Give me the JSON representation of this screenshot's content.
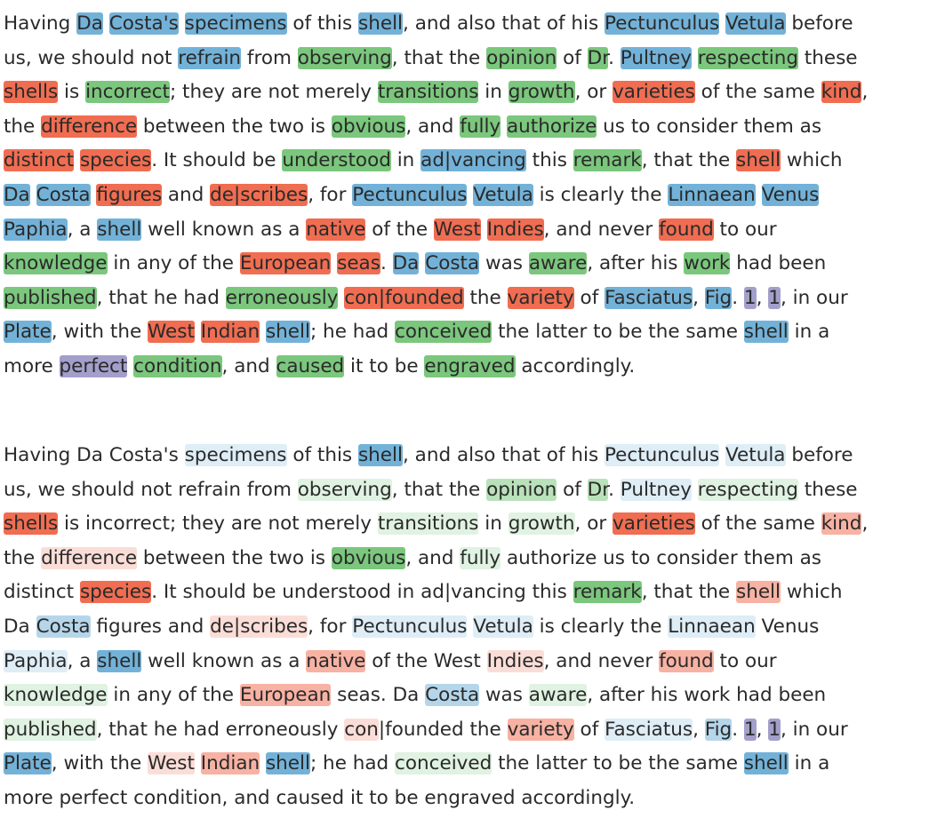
{
  "palette": {
    "blue": [
      107,
      174,
      214
    ],
    "green": [
      116,
      196,
      118
    ],
    "red": [
      239,
      101,
      72
    ],
    "purple": [
      158,
      154,
      200
    ]
  },
  "panels": [
    {
      "id": "top",
      "lines": [
        [
          [
            "Having ",
            ""
          ],
          [
            "Da",
            "b3"
          ],
          [
            " ",
            ""
          ],
          [
            "Costa's",
            "b3"
          ],
          [
            " ",
            ""
          ],
          [
            "specimens",
            "b3"
          ],
          [
            " of this ",
            ""
          ],
          [
            "shell",
            "b3"
          ],
          [
            ", and also that of his ",
            ""
          ],
          [
            "Pectunculus",
            "b3"
          ],
          [
            " ",
            ""
          ],
          [
            "Vetula",
            "b3"
          ],
          [
            " before",
            ""
          ]
        ],
        [
          [
            "us, we should not ",
            ""
          ],
          [
            "refrain",
            "b3"
          ],
          [
            " from ",
            ""
          ],
          [
            "observing",
            "g3"
          ],
          [
            ", that the ",
            ""
          ],
          [
            "opinion",
            "g3"
          ],
          [
            " of ",
            ""
          ],
          [
            "Dr",
            "g3"
          ],
          [
            ". ",
            ""
          ],
          [
            "Pultney",
            "b3"
          ],
          [
            " ",
            ""
          ],
          [
            "respecting",
            "g3"
          ],
          [
            " these",
            ""
          ]
        ],
        [
          [
            "shells",
            "r3"
          ],
          [
            " is ",
            ""
          ],
          [
            "incorrect",
            "g3"
          ],
          [
            "; they are not merely ",
            ""
          ],
          [
            "transitions",
            "g3"
          ],
          [
            " in ",
            ""
          ],
          [
            "growth",
            "g3"
          ],
          [
            ", or ",
            ""
          ],
          [
            "varieties",
            "r3"
          ],
          [
            " of the same ",
            ""
          ],
          [
            "kind",
            "r3"
          ],
          [
            ",",
            ""
          ]
        ],
        [
          [
            "the ",
            ""
          ],
          [
            "difference",
            "r3"
          ],
          [
            " between the two is ",
            ""
          ],
          [
            "obvious",
            "g3"
          ],
          [
            ", and ",
            ""
          ],
          [
            "fully",
            "g3"
          ],
          [
            " ",
            ""
          ],
          [
            "authorize",
            "g3"
          ],
          [
            " us to consider them as",
            ""
          ]
        ],
        [
          [
            "distinct",
            "r3"
          ],
          [
            " ",
            ""
          ],
          [
            "species",
            "r3"
          ],
          [
            ". It should be ",
            ""
          ],
          [
            "understood",
            "g3"
          ],
          [
            " in ",
            ""
          ],
          [
            "ad|vancing",
            "b3"
          ],
          [
            " this ",
            ""
          ],
          [
            "remark",
            "g3"
          ],
          [
            ", that the ",
            ""
          ],
          [
            "shell",
            "r3"
          ],
          [
            " which",
            ""
          ]
        ],
        [
          [
            "Da",
            "b3"
          ],
          [
            " ",
            ""
          ],
          [
            "Costa",
            "b3"
          ],
          [
            " ",
            ""
          ],
          [
            "figures",
            "r3"
          ],
          [
            " and ",
            ""
          ],
          [
            "de|scribes",
            "r3"
          ],
          [
            ", for ",
            ""
          ],
          [
            "Pectunculus",
            "b3"
          ],
          [
            " ",
            ""
          ],
          [
            "Vetula",
            "b3"
          ],
          [
            " is clearly the ",
            ""
          ],
          [
            "Linnaean",
            "b3"
          ],
          [
            " ",
            ""
          ],
          [
            "Venus",
            "b3"
          ]
        ],
        [
          [
            "Paphia",
            "b3"
          ],
          [
            ", a ",
            ""
          ],
          [
            "shell",
            "b3"
          ],
          [
            " well known as a ",
            ""
          ],
          [
            "native",
            "r3"
          ],
          [
            " of the ",
            ""
          ],
          [
            "West",
            "r3"
          ],
          [
            " ",
            ""
          ],
          [
            "Indies",
            "r3"
          ],
          [
            ", and never ",
            ""
          ],
          [
            "found",
            "r3"
          ],
          [
            " to our",
            ""
          ]
        ],
        [
          [
            "knowledge",
            "g3"
          ],
          [
            " in any of the ",
            ""
          ],
          [
            "European",
            "r3"
          ],
          [
            " ",
            ""
          ],
          [
            "seas",
            "r3"
          ],
          [
            ". ",
            ""
          ],
          [
            "Da",
            "b3"
          ],
          [
            " ",
            ""
          ],
          [
            "Costa",
            "b3"
          ],
          [
            " was ",
            ""
          ],
          [
            "aware",
            "g3"
          ],
          [
            ", after his ",
            ""
          ],
          [
            "work",
            "g3"
          ],
          [
            " had been",
            ""
          ]
        ],
        [
          [
            "published",
            "g3"
          ],
          [
            ", that he had ",
            ""
          ],
          [
            "erroneously",
            "g3"
          ],
          [
            " ",
            ""
          ],
          [
            "con|founded",
            "r3"
          ],
          [
            " the ",
            ""
          ],
          [
            "variety",
            "r3"
          ],
          [
            " of ",
            ""
          ],
          [
            "Fasciatus",
            "b3"
          ],
          [
            ", ",
            ""
          ],
          [
            "Fig",
            "b3"
          ],
          [
            ". ",
            ""
          ],
          [
            "1",
            "p3"
          ],
          [
            ", ",
            ""
          ],
          [
            "1",
            "p3"
          ],
          [
            ", in our",
            ""
          ]
        ],
        [
          [
            "Plate",
            "b3"
          ],
          [
            ", with the ",
            ""
          ],
          [
            "West",
            "r3"
          ],
          [
            " ",
            ""
          ],
          [
            "Indian",
            "r3"
          ],
          [
            " ",
            ""
          ],
          [
            "shell",
            "b3"
          ],
          [
            "; he had ",
            ""
          ],
          [
            "conceived",
            "g3"
          ],
          [
            " the latter to be the same ",
            ""
          ],
          [
            "shell",
            "b3"
          ],
          [
            " in a",
            ""
          ]
        ],
        [
          [
            "more ",
            ""
          ],
          [
            "perfect",
            "p3"
          ],
          [
            " ",
            ""
          ],
          [
            "condition",
            "g3"
          ],
          [
            ", and ",
            ""
          ],
          [
            "caused",
            "g3"
          ],
          [
            " it to be ",
            ""
          ],
          [
            "engraved",
            "g3"
          ],
          [
            " accordingly.",
            ""
          ]
        ]
      ]
    },
    {
      "id": "bottom",
      "lines": [
        [
          [
            "Having Da Costa's ",
            ""
          ],
          [
            "specimens",
            "b1"
          ],
          [
            " of this ",
            ""
          ],
          [
            "shell",
            "b3"
          ],
          [
            ", and also that of his ",
            ""
          ],
          [
            "Pectunculus",
            "b1"
          ],
          [
            " ",
            ""
          ],
          [
            "Vetula",
            "b1"
          ],
          [
            " before",
            ""
          ]
        ],
        [
          [
            "us, we should not refrain from ",
            ""
          ],
          [
            "observing",
            "g1"
          ],
          [
            ", that the ",
            ""
          ],
          [
            "opinion",
            "g2"
          ],
          [
            " of ",
            ""
          ],
          [
            "Dr",
            "g2"
          ],
          [
            ". ",
            ""
          ],
          [
            "Pultney",
            "b1"
          ],
          [
            " ",
            ""
          ],
          [
            "respecting",
            "g1"
          ],
          [
            " these",
            ""
          ]
        ],
        [
          [
            "shells",
            "r3"
          ],
          [
            " is incorrect; they are not merely ",
            ""
          ],
          [
            "transitions",
            "g1"
          ],
          [
            " in ",
            ""
          ],
          [
            "growth",
            "g1"
          ],
          [
            ", or ",
            ""
          ],
          [
            "varieties",
            "r3"
          ],
          [
            " of the same ",
            ""
          ],
          [
            "kind",
            "r2"
          ],
          [
            ",",
            ""
          ]
        ],
        [
          [
            "the ",
            ""
          ],
          [
            "difference",
            "r1"
          ],
          [
            " between the two is ",
            ""
          ],
          [
            "obvious",
            "g3"
          ],
          [
            ", and ",
            ""
          ],
          [
            "fully",
            "g1"
          ],
          [
            " authorize us to consider them as",
            ""
          ]
        ],
        [
          [
            "distinct ",
            ""
          ],
          [
            "species",
            "r3"
          ],
          [
            ". It should be understood in ad|vancing this ",
            ""
          ],
          [
            "remark",
            "g3"
          ],
          [
            ", that the ",
            ""
          ],
          [
            "shell",
            "r2"
          ],
          [
            " which",
            ""
          ]
        ],
        [
          [
            "Da ",
            ""
          ],
          [
            "Costa",
            "b2"
          ],
          [
            " figures and ",
            ""
          ],
          [
            "de|scribes",
            "r1"
          ],
          [
            ", for ",
            ""
          ],
          [
            "Pectunculus",
            "b1"
          ],
          [
            " ",
            ""
          ],
          [
            "Vetula",
            "b1"
          ],
          [
            " is clearly the ",
            ""
          ],
          [
            "Linnaean",
            "b1"
          ],
          [
            " Venus",
            ""
          ]
        ],
        [
          [
            "Paphia",
            "b1"
          ],
          [
            ", a ",
            ""
          ],
          [
            "shell",
            "b3"
          ],
          [
            " well known as a ",
            ""
          ],
          [
            "native",
            "r2"
          ],
          [
            " of the West ",
            ""
          ],
          [
            "Indies",
            "r1"
          ],
          [
            ", and never ",
            ""
          ],
          [
            "found",
            "r2"
          ],
          [
            " to our",
            ""
          ]
        ],
        [
          [
            "knowledge",
            "g1"
          ],
          [
            " in any of the ",
            ""
          ],
          [
            "European",
            "r2"
          ],
          [
            " seas. Da ",
            ""
          ],
          [
            "Costa",
            "b2"
          ],
          [
            " was ",
            ""
          ],
          [
            "aware",
            "g1"
          ],
          [
            ", after his work had been",
            ""
          ]
        ],
        [
          [
            "published",
            "g1"
          ],
          [
            ", that he had erroneously ",
            ""
          ],
          [
            "con",
            "r1"
          ],
          [
            "|founded the ",
            ""
          ],
          [
            "variety",
            "r2"
          ],
          [
            " of ",
            ""
          ],
          [
            "Fasciatus",
            "b1"
          ],
          [
            ", ",
            ""
          ],
          [
            "Fig",
            "b2"
          ],
          [
            ". ",
            ""
          ],
          [
            "1",
            "p3"
          ],
          [
            ", ",
            ""
          ],
          [
            "1",
            "p3"
          ],
          [
            ", in our",
            ""
          ]
        ],
        [
          [
            "Plate",
            "b3"
          ],
          [
            ", with the ",
            ""
          ],
          [
            "West",
            "r1"
          ],
          [
            " ",
            ""
          ],
          [
            "Indian",
            "r2"
          ],
          [
            " ",
            ""
          ],
          [
            "shell",
            "b3"
          ],
          [
            "; he had ",
            ""
          ],
          [
            "conceived",
            "g1"
          ],
          [
            " the latter to be the same ",
            ""
          ],
          [
            "shell",
            "b3"
          ],
          [
            " in a",
            ""
          ]
        ],
        [
          [
            "more perfect condition, and caused it to be engraved accordingly.",
            ""
          ]
        ]
      ]
    }
  ]
}
